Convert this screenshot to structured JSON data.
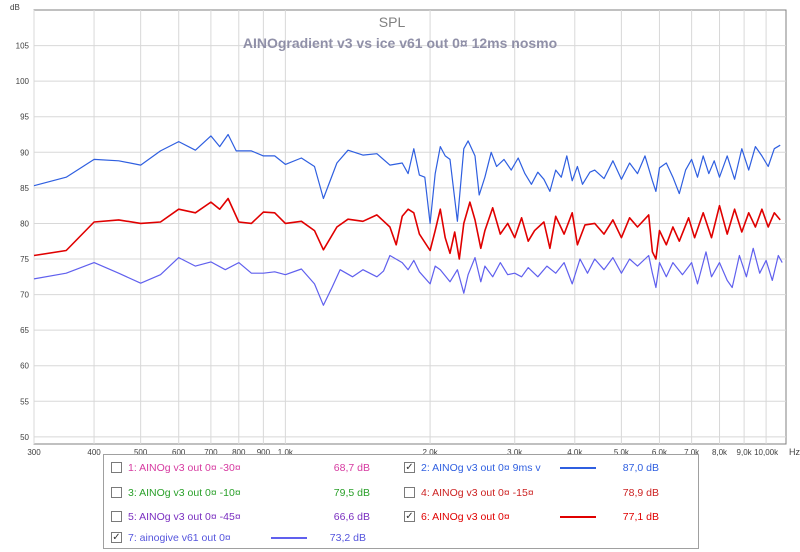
{
  "chart_data": {
    "type": "line",
    "title": "SPL",
    "subtitle": "AINOgradient v3 vs ice v61 out 0¤ 12ms nosmo",
    "ylabel": "dB",
    "xlabel": "Hz",
    "x_scale": "log",
    "xlim": [
      300,
      11000
    ],
    "ylim": [
      49,
      110
    ],
    "y_ticks": [
      50,
      55,
      60,
      65,
      70,
      75,
      80,
      85,
      90,
      95,
      100,
      105
    ],
    "x_ticks": [
      {
        "value": 300,
        "label": "300"
      },
      {
        "value": 400,
        "label": "400"
      },
      {
        "value": 500,
        "label": "500"
      },
      {
        "value": 600,
        "label": "600"
      },
      {
        "value": 700,
        "label": "700"
      },
      {
        "value": 800,
        "label": "800"
      },
      {
        "value": 900,
        "label": "900"
      },
      {
        "value": 1000,
        "label": "1,0k"
      },
      {
        "value": 2000,
        "label": "2,0k"
      },
      {
        "value": 3000,
        "label": "3,0k"
      },
      {
        "value": 4000,
        "label": "4,0k"
      },
      {
        "value": 5000,
        "label": "5,0k"
      },
      {
        "value": 6000,
        "label": "6,0k"
      },
      {
        "value": 7000,
        "label": "7,0k"
      },
      {
        "value": 8000,
        "label": "8,0k"
      },
      {
        "value": 9000,
        "label": "9,0k"
      },
      {
        "value": 10000,
        "label": "10,00k"
      }
    ],
    "grid": true,
    "series": [
      {
        "name": "2: AINOg v3 out 0¤ 9ms v",
        "color": "#2f5fe0",
        "points": [
          [
            300,
            85.3
          ],
          [
            350,
            86.5
          ],
          [
            400,
            89
          ],
          [
            450,
            88.8
          ],
          [
            500,
            88.2
          ],
          [
            550,
            90.2
          ],
          [
            600,
            91.5
          ],
          [
            650,
            90.3
          ],
          [
            700,
            92.3
          ],
          [
            730,
            90.8
          ],
          [
            760,
            92.5
          ],
          [
            790,
            90.2
          ],
          [
            850,
            90.2
          ],
          [
            900,
            89.5
          ],
          [
            950,
            89.5
          ],
          [
            1000,
            88.3
          ],
          [
            1080,
            89.2
          ],
          [
            1150,
            88
          ],
          [
            1200,
            83.5
          ],
          [
            1280,
            88.5
          ],
          [
            1350,
            90.3
          ],
          [
            1450,
            89.6
          ],
          [
            1550,
            89.8
          ],
          [
            1650,
            88.2
          ],
          [
            1750,
            88.5
          ],
          [
            1800,
            87
          ],
          [
            1850,
            90.5
          ],
          [
            1900,
            86.8
          ],
          [
            1950,
            86.5
          ],
          [
            2000,
            80
          ],
          [
            2050,
            87
          ],
          [
            2100,
            90.8
          ],
          [
            2150,
            89.5
          ],
          [
            2200,
            89
          ],
          [
            2280,
            80.3
          ],
          [
            2350,
            90.5
          ],
          [
            2400,
            91.6
          ],
          [
            2480,
            89.5
          ],
          [
            2530,
            84
          ],
          [
            2600,
            86.5
          ],
          [
            2680,
            90
          ],
          [
            2750,
            88
          ],
          [
            2850,
            89
          ],
          [
            2950,
            87.5
          ],
          [
            3050,
            89.2
          ],
          [
            3150,
            87
          ],
          [
            3250,
            85.5
          ],
          [
            3350,
            87.2
          ],
          [
            3450,
            86.2
          ],
          [
            3550,
            84.5
          ],
          [
            3650,
            87.5
          ],
          [
            3750,
            86.5
          ],
          [
            3850,
            89.5
          ],
          [
            3950,
            86
          ],
          [
            4050,
            88
          ],
          [
            4150,
            85.5
          ],
          [
            4300,
            87.2
          ],
          [
            4400,
            87.5
          ],
          [
            4600,
            86.3
          ],
          [
            4800,
            88.8
          ],
          [
            5000,
            86.2
          ],
          [
            5200,
            88.5
          ],
          [
            5400,
            87
          ],
          [
            5600,
            89.5
          ],
          [
            5800,
            86
          ],
          [
            5900,
            84.5
          ],
          [
            6000,
            87.8
          ],
          [
            6200,
            88.5
          ],
          [
            6400,
            86.5
          ],
          [
            6600,
            84.2
          ],
          [
            6800,
            87.5
          ],
          [
            7000,
            89
          ],
          [
            7200,
            86.5
          ],
          [
            7400,
            89.5
          ],
          [
            7600,
            87
          ],
          [
            7800,
            88.8
          ],
          [
            8000,
            86.5
          ],
          [
            8300,
            89.5
          ],
          [
            8600,
            86.2
          ],
          [
            8900,
            90.5
          ],
          [
            9200,
            87.5
          ],
          [
            9500,
            90.8
          ],
          [
            9800,
            89.5
          ],
          [
            10100,
            88
          ],
          [
            10400,
            90.5
          ],
          [
            10700,
            91
          ]
        ]
      },
      {
        "name": "6: AINOg v3 out 0¤",
        "color": "#e00000",
        "points": [
          [
            300,
            75.5
          ],
          [
            350,
            76.2
          ],
          [
            400,
            80.2
          ],
          [
            450,
            80.5
          ],
          [
            500,
            80
          ],
          [
            550,
            80.2
          ],
          [
            600,
            82
          ],
          [
            650,
            81.5
          ],
          [
            700,
            83
          ],
          [
            730,
            82
          ],
          [
            760,
            83.5
          ],
          [
            800,
            80.2
          ],
          [
            850,
            80
          ],
          [
            900,
            81.6
          ],
          [
            950,
            81.5
          ],
          [
            1000,
            80
          ],
          [
            1080,
            80.3
          ],
          [
            1150,
            79
          ],
          [
            1200,
            76.3
          ],
          [
            1280,
            79.5
          ],
          [
            1350,
            80.6
          ],
          [
            1450,
            80.3
          ],
          [
            1550,
            81.2
          ],
          [
            1650,
            79.5
          ],
          [
            1700,
            77
          ],
          [
            1750,
            81
          ],
          [
            1800,
            82
          ],
          [
            1850,
            81.5
          ],
          [
            1900,
            78.5
          ],
          [
            2000,
            76.2
          ],
          [
            2050,
            79
          ],
          [
            2100,
            82
          ],
          [
            2150,
            78
          ],
          [
            2200,
            75.8
          ],
          [
            2250,
            78.8
          ],
          [
            2300,
            75
          ],
          [
            2350,
            80
          ],
          [
            2420,
            83
          ],
          [
            2480,
            80.5
          ],
          [
            2550,
            76.5
          ],
          [
            2600,
            79
          ],
          [
            2700,
            82.2
          ],
          [
            2800,
            78.5
          ],
          [
            2900,
            80
          ],
          [
            3000,
            78
          ],
          [
            3100,
            80.8
          ],
          [
            3200,
            77.5
          ],
          [
            3300,
            79
          ],
          [
            3450,
            80.2
          ],
          [
            3550,
            76.5
          ],
          [
            3650,
            81
          ],
          [
            3800,
            78.5
          ],
          [
            3950,
            81.5
          ],
          [
            4050,
            77
          ],
          [
            4200,
            79.8
          ],
          [
            4400,
            80
          ],
          [
            4600,
            78.5
          ],
          [
            4800,
            80.5
          ],
          [
            5000,
            78
          ],
          [
            5200,
            80.8
          ],
          [
            5400,
            79.5
          ],
          [
            5700,
            81.2
          ],
          [
            5800,
            76
          ],
          [
            5900,
            75
          ],
          [
            6000,
            79
          ],
          [
            6200,
            77
          ],
          [
            6400,
            79.5
          ],
          [
            6600,
            77.5
          ],
          [
            6900,
            80.8
          ],
          [
            7100,
            78
          ],
          [
            7400,
            81.5
          ],
          [
            7700,
            78
          ],
          [
            8000,
            82.5
          ],
          [
            8300,
            78.5
          ],
          [
            8600,
            82
          ],
          [
            8900,
            78.8
          ],
          [
            9200,
            81.5
          ],
          [
            9500,
            79.5
          ],
          [
            9800,
            82
          ],
          [
            10100,
            79.5
          ],
          [
            10400,
            81.5
          ],
          [
            10700,
            80.5
          ]
        ]
      },
      {
        "name": "7: ainogive v61 out 0¤",
        "color": "#6060ee",
        "points": [
          [
            300,
            72.2
          ],
          [
            350,
            73
          ],
          [
            400,
            74.5
          ],
          [
            450,
            73
          ],
          [
            500,
            71.6
          ],
          [
            550,
            72.8
          ],
          [
            600,
            75.2
          ],
          [
            650,
            74
          ],
          [
            700,
            74.6
          ],
          [
            750,
            73.5
          ],
          [
            800,
            74.5
          ],
          [
            850,
            73
          ],
          [
            900,
            73
          ],
          [
            950,
            73.2
          ],
          [
            1000,
            72.8
          ],
          [
            1080,
            73.6
          ],
          [
            1150,
            71.5
          ],
          [
            1200,
            68.5
          ],
          [
            1250,
            71
          ],
          [
            1300,
            73.5
          ],
          [
            1380,
            72.5
          ],
          [
            1450,
            73.5
          ],
          [
            1550,
            72.5
          ],
          [
            1600,
            73.3
          ],
          [
            1650,
            75.5
          ],
          [
            1750,
            74.5
          ],
          [
            1800,
            73.5
          ],
          [
            1850,
            74.8
          ],
          [
            1900,
            73.2
          ],
          [
            2000,
            71.5
          ],
          [
            2050,
            74
          ],
          [
            2100,
            73.5
          ],
          [
            2200,
            71.8
          ],
          [
            2280,
            73.5
          ],
          [
            2350,
            70.2
          ],
          [
            2400,
            72.8
          ],
          [
            2480,
            75.2
          ],
          [
            2550,
            71.8
          ],
          [
            2600,
            74
          ],
          [
            2700,
            72.5
          ],
          [
            2800,
            74.5
          ],
          [
            2900,
            72.8
          ],
          [
            3000,
            73
          ],
          [
            3100,
            72.5
          ],
          [
            3200,
            73.8
          ],
          [
            3350,
            72.5
          ],
          [
            3500,
            74
          ],
          [
            3650,
            73
          ],
          [
            3800,
            74.5
          ],
          [
            3950,
            71.5
          ],
          [
            4100,
            75
          ],
          [
            4250,
            73
          ],
          [
            4400,
            75
          ],
          [
            4600,
            73.5
          ],
          [
            4800,
            75.2
          ],
          [
            5000,
            73
          ],
          [
            5200,
            75
          ],
          [
            5400,
            74
          ],
          [
            5700,
            75.5
          ],
          [
            5800,
            73
          ],
          [
            5900,
            71
          ],
          [
            6000,
            74.5
          ],
          [
            6200,
            72.5
          ],
          [
            6400,
            74.5
          ],
          [
            6700,
            72.8
          ],
          [
            7000,
            74.5
          ],
          [
            7200,
            71.5
          ],
          [
            7500,
            76
          ],
          [
            7700,
            72.5
          ],
          [
            8000,
            74.5
          ],
          [
            8300,
            72
          ],
          [
            8500,
            71
          ],
          [
            8800,
            75.5
          ],
          [
            9100,
            72.5
          ],
          [
            9400,
            76.5
          ],
          [
            9700,
            73
          ],
          [
            10000,
            74.8
          ],
          [
            10300,
            72
          ],
          [
            10600,
            75.5
          ],
          [
            10800,
            74.5
          ]
        ]
      }
    ]
  },
  "legend": {
    "items": [
      {
        "label": "1: AINOg v3 out 0¤ -30¤",
        "value": "68,7 dB",
        "checked": false,
        "text_color": "#d63aa0",
        "swatch": ""
      },
      {
        "label": "2: AINOg v3 out 0¤ 9ms v",
        "value": "87,0 dB",
        "checked": true,
        "text_color": "#2f5fe0",
        "swatch": "#2f5fe0"
      },
      {
        "label": "3: AINOg v3 out 0¤ -10¤",
        "value": "79,5 dB",
        "checked": false,
        "text_color": "#2aa02a",
        "swatch": ""
      },
      {
        "label": "4: AINOg v3 out 0¤ -15¤",
        "value": "78,9 dB",
        "checked": false,
        "text_color": "#cc2222",
        "swatch": ""
      },
      {
        "label": "5: AINOg v3 out 0¤ -45¤",
        "value": "66,6 dB",
        "checked": false,
        "text_color": "#7a2fc0",
        "swatch": ""
      },
      {
        "label": "6: AINOg v3 out 0¤",
        "value": "77,1 dB",
        "checked": true,
        "text_color": "#e00000",
        "swatch": "#e00000"
      },
      {
        "label": "7: ainogive v61 out 0¤",
        "value": "73,2 dB",
        "checked": true,
        "text_color": "#5555dd",
        "swatch": "#6060ee"
      }
    ]
  }
}
